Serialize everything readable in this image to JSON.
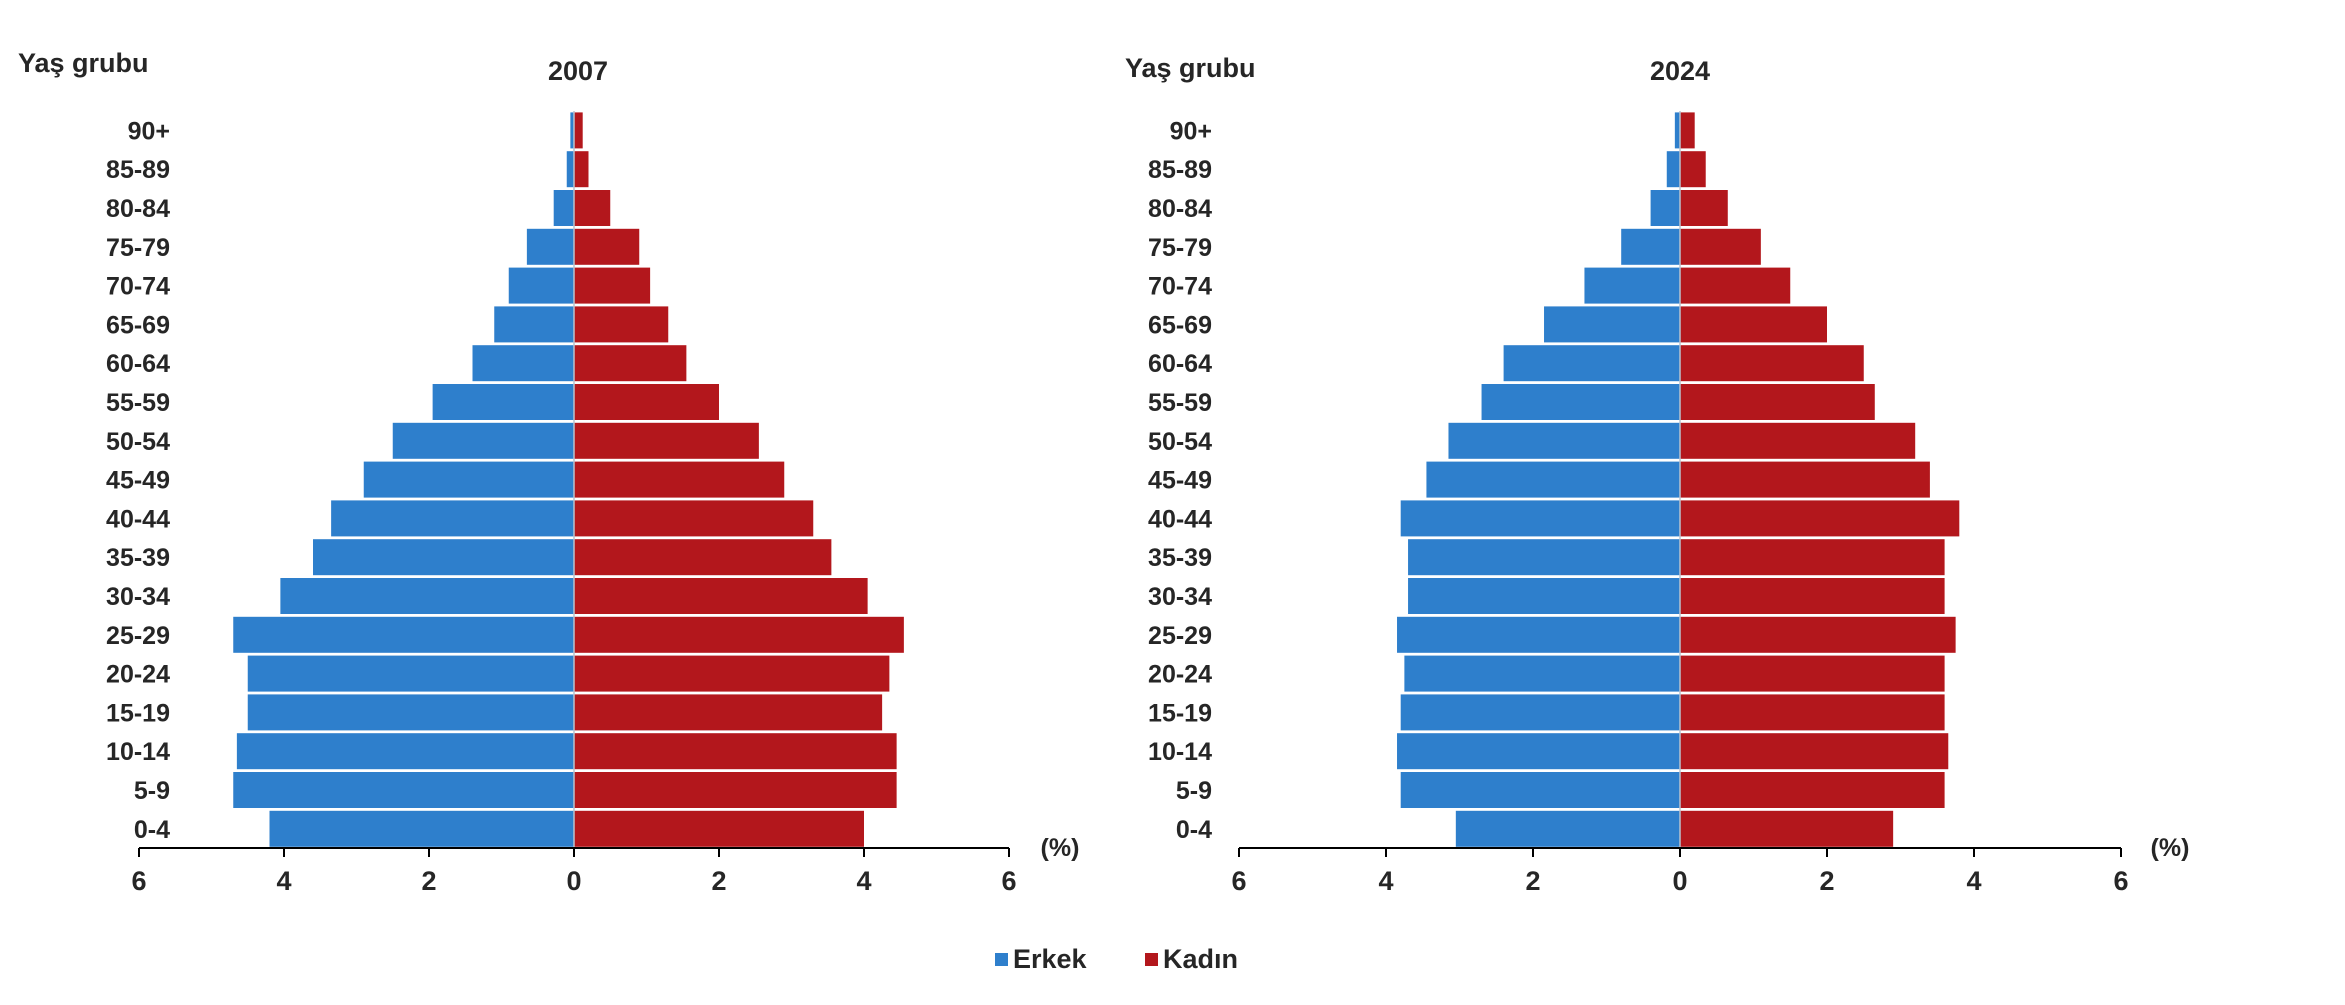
{
  "chart_data": [
    {
      "type": "bar",
      "orientation": "horizontal",
      "layout": "population-pyramid",
      "title": "2007",
      "ylabel": "Yaş grubu",
      "unit_label": "(%)",
      "categories": [
        "0-4",
        "5-9",
        "10-14",
        "15-19",
        "20-24",
        "25-29",
        "30-34",
        "35-39",
        "40-44",
        "45-49",
        "50-54",
        "55-59",
        "60-64",
        "65-69",
        "70-74",
        "75-79",
        "80-84",
        "85-89",
        "90+"
      ],
      "xlim": [
        -6,
        6
      ],
      "xticks": [
        6,
        4,
        2,
        0,
        2,
        4,
        6
      ],
      "grid": false,
      "series": [
        {
          "name": "Erkek",
          "side": "left",
          "color": "#2E7FCC",
          "values": [
            4.2,
            4.7,
            4.65,
            4.5,
            4.5,
            4.7,
            4.05,
            3.6,
            3.35,
            2.9,
            2.5,
            1.95,
            1.4,
            1.1,
            0.9,
            0.65,
            0.28,
            0.1,
            0.05
          ]
        },
        {
          "name": "Kadın",
          "side": "right",
          "color": "#B3171C",
          "values": [
            4.0,
            4.45,
            4.45,
            4.25,
            4.35,
            4.55,
            4.05,
            3.55,
            3.3,
            2.9,
            2.55,
            2.0,
            1.55,
            1.3,
            1.05,
            0.9,
            0.5,
            0.2,
            0.12
          ]
        }
      ]
    },
    {
      "type": "bar",
      "orientation": "horizontal",
      "layout": "population-pyramid",
      "title": "2024",
      "ylabel": "Yaş grubu",
      "unit_label": "(%)",
      "categories": [
        "0-4",
        "5-9",
        "10-14",
        "15-19",
        "20-24",
        "25-29",
        "30-34",
        "35-39",
        "40-44",
        "45-49",
        "50-54",
        "55-59",
        "60-64",
        "65-69",
        "70-74",
        "75-79",
        "80-84",
        "85-89",
        "90+"
      ],
      "xlim": [
        -6,
        6
      ],
      "xticks": [
        6,
        4,
        2,
        0,
        2,
        4,
        6
      ],
      "grid": false,
      "series": [
        {
          "name": "Erkek",
          "side": "left",
          "color": "#2E7FCC",
          "values": [
            3.05,
            3.8,
            3.85,
            3.8,
            3.75,
            3.85,
            3.7,
            3.7,
            3.8,
            3.45,
            3.15,
            2.7,
            2.4,
            1.85,
            1.3,
            0.8,
            0.4,
            0.18,
            0.07
          ]
        },
        {
          "name": "Kadın",
          "side": "right",
          "color": "#B3171C",
          "values": [
            2.9,
            3.6,
            3.65,
            3.6,
            3.6,
            3.75,
            3.6,
            3.6,
            3.8,
            3.4,
            3.2,
            2.65,
            2.5,
            2.0,
            1.5,
            1.1,
            0.65,
            0.35,
            0.2
          ]
        }
      ]
    }
  ],
  "legend": {
    "position": "bottom-center",
    "items": [
      {
        "label": "Erkek",
        "color": "#2E7FCC"
      },
      {
        "label": "Kadın",
        "color": "#B3171C"
      }
    ]
  }
}
